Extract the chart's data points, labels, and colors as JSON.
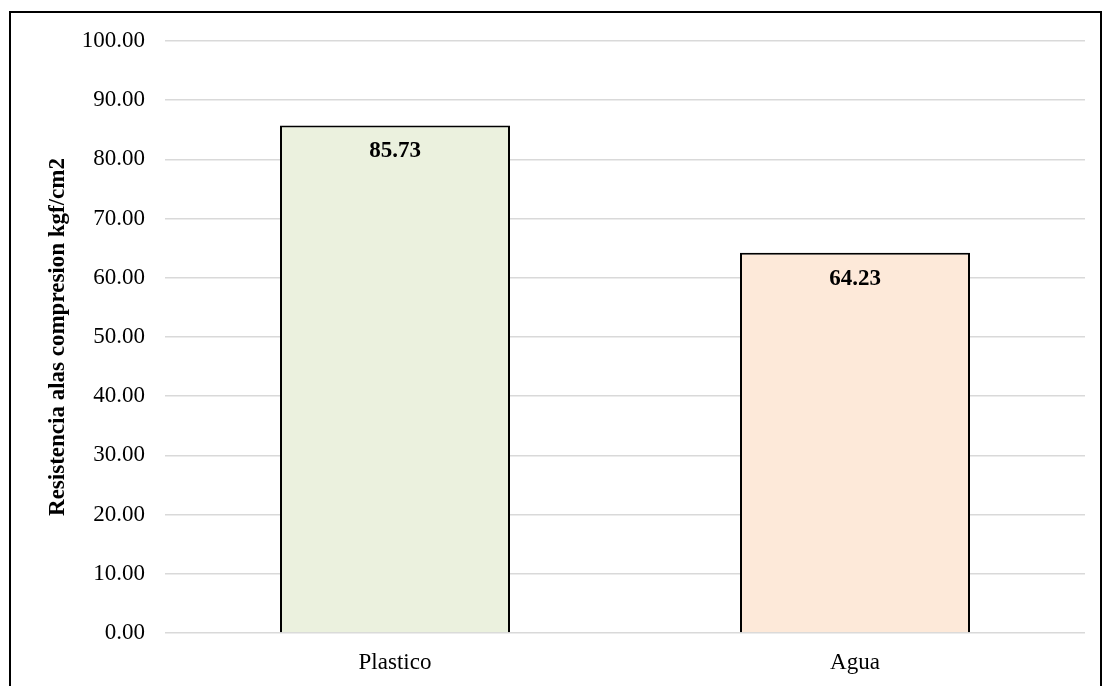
{
  "chart_data": {
    "type": "bar",
    "ylabel": "Resistencia alas compresion kgf/cm2",
    "categories": [
      "Plastico",
      "Agua"
    ],
    "values": [
      85.73,
      64.23
    ],
    "colors": [
      "#ebf1de",
      "#fde9d9"
    ],
    "ylim": [
      0,
      100
    ],
    "yticks": [
      {
        "value": 0,
        "label": "0.00"
      },
      {
        "value": 10,
        "label": "10.00"
      },
      {
        "value": 20,
        "label": "20.00"
      },
      {
        "value": 30,
        "label": "30.00"
      },
      {
        "value": 40,
        "label": "40.00"
      },
      {
        "value": 50,
        "label": "50.00"
      },
      {
        "value": 60,
        "label": "60.00"
      },
      {
        "value": 70,
        "label": "70.00"
      },
      {
        "value": 80,
        "label": "80.00"
      },
      {
        "value": 90,
        "label": "90.00"
      },
      {
        "value": 100,
        "label": "100.00"
      }
    ],
    "grid": "y",
    "data_labels": true
  }
}
